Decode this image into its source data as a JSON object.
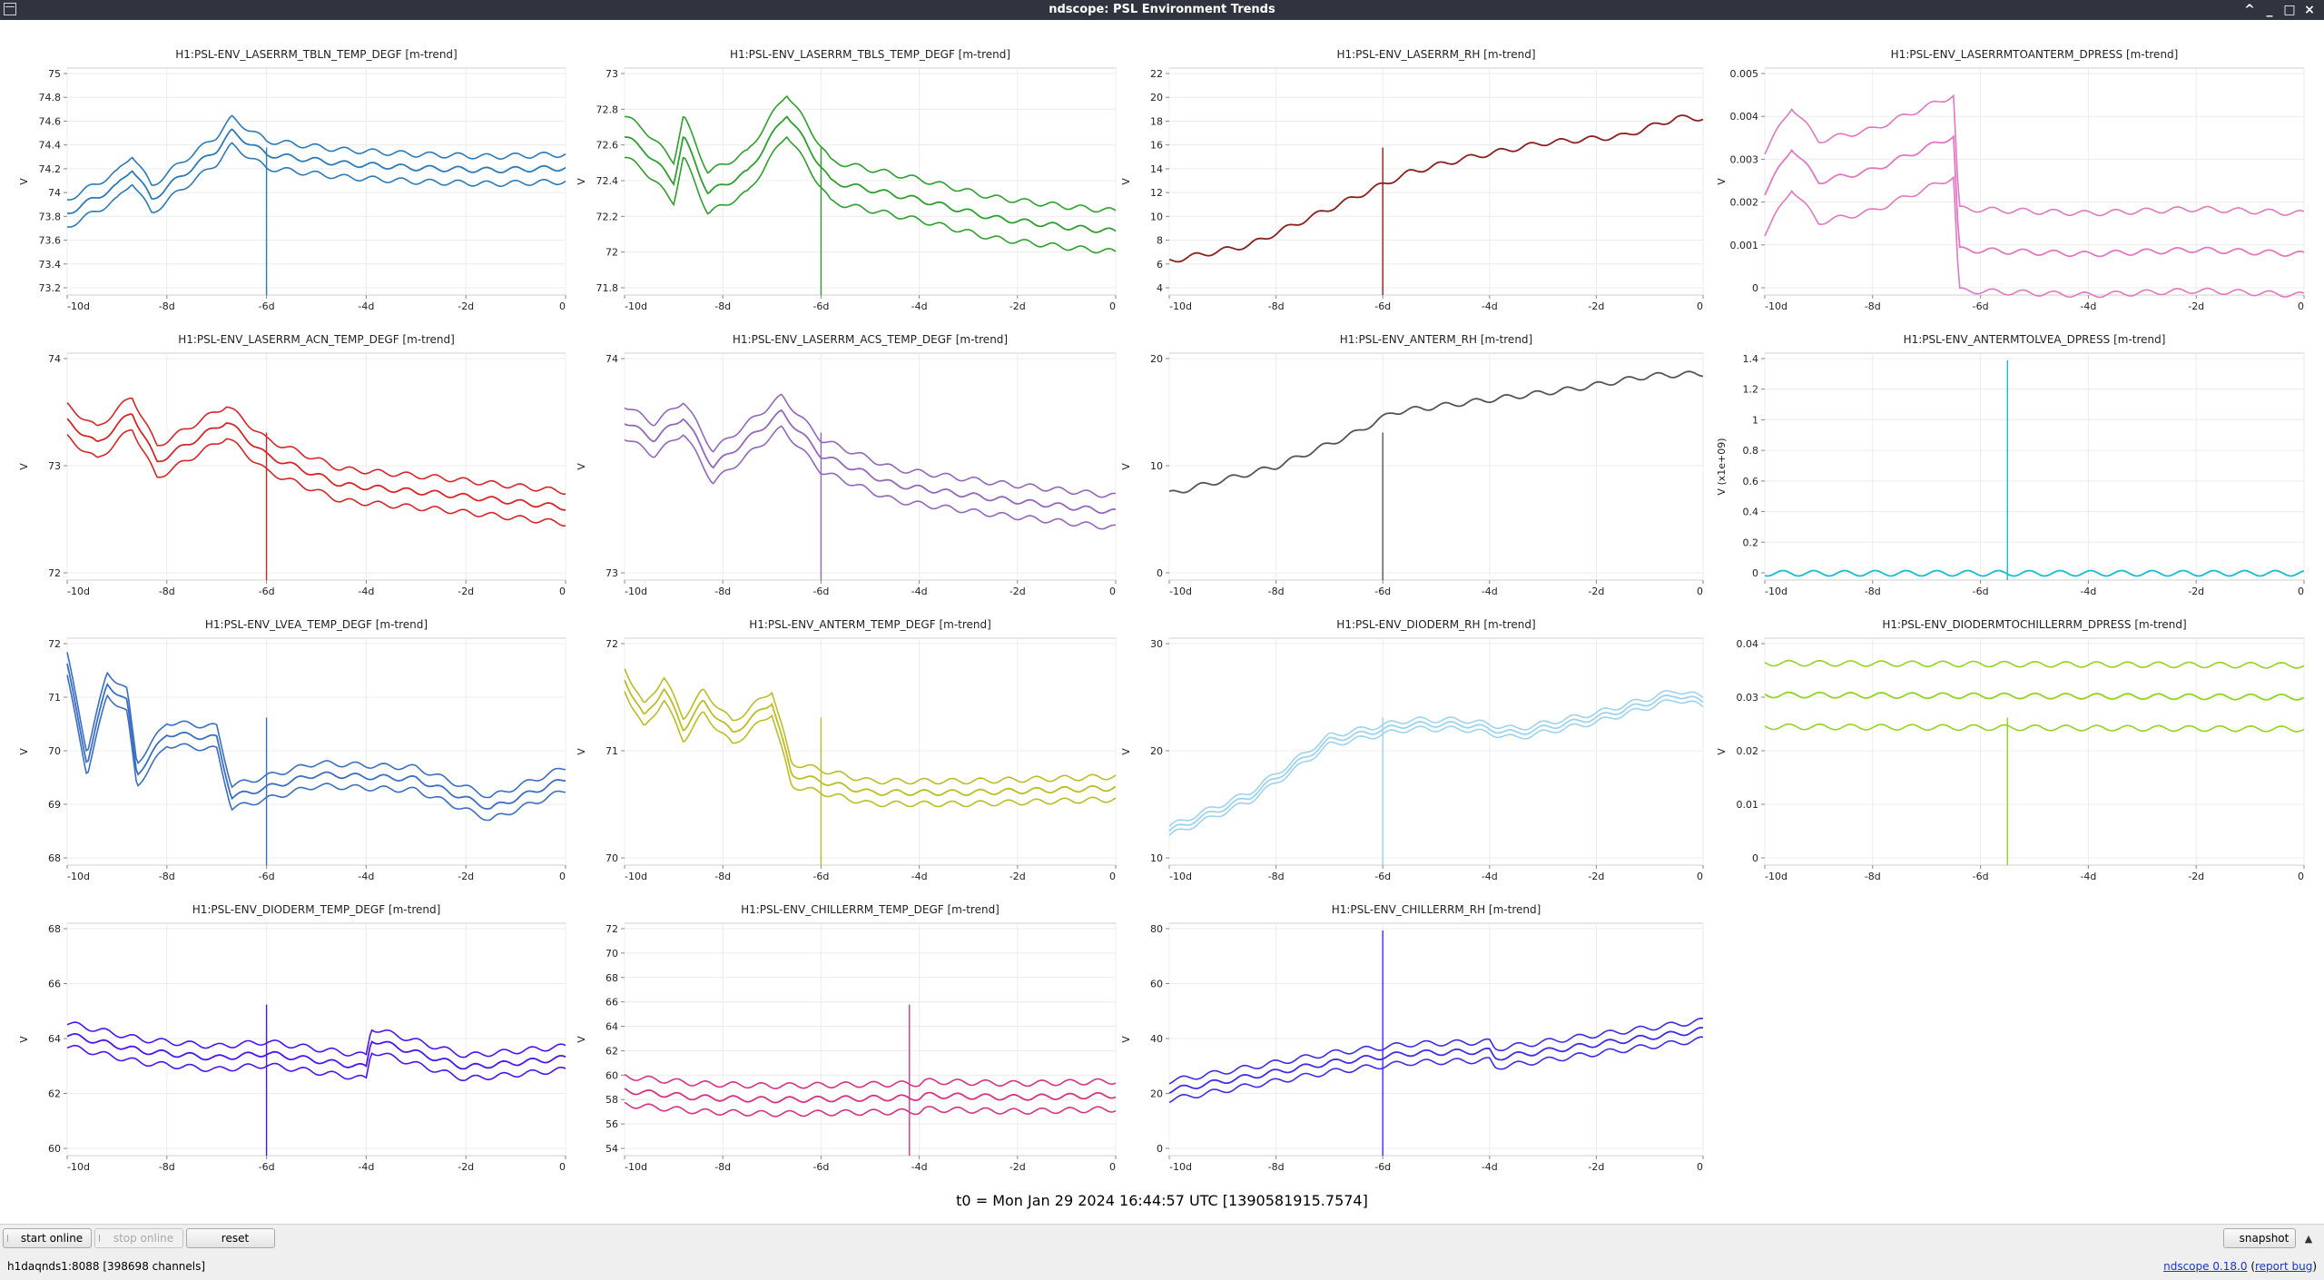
{
  "window": {
    "title": "ndscope: PSL Environment Trends",
    "controls": [
      "^",
      "_",
      "□",
      "×"
    ]
  },
  "plots": [
    {
      "title": "H1:PSL-ENV_LASERRM_TBLN_TEMP_DEGF [m-trend]",
      "ylabel": "V",
      "yticks": [
        "75",
        "74.8",
        "74.6",
        "74.4",
        "74.2",
        "74",
        "73.8",
        "73.6",
        "73.4",
        "73.2"
      ],
      "color": "#2b7bb9"
    },
    {
      "title": "H1:PSL-ENV_LASERRM_TBLS_TEMP_DEGF [m-trend]",
      "ylabel": "V",
      "yticks": [
        "73",
        "72.8",
        "72.6",
        "72.4",
        "72.2",
        "72",
        "71.8"
      ],
      "color": "#2ca02c"
    },
    {
      "title": "H1:PSL-ENV_LASERRM_RH [m-trend]",
      "ylabel": "V",
      "yticks": [
        "22",
        "20",
        "18",
        "16",
        "14",
        "12",
        "10",
        "8",
        "6",
        "4"
      ],
      "color": "#8c1f1f"
    },
    {
      "title": "H1:PSL-ENV_LASERRMTOANTERM_DPRESS [m-trend]",
      "ylabel": "V",
      "yticks": [
        "0.005",
        "0.004",
        "0.003",
        "0.002",
        "0.001",
        "0"
      ],
      "color": "#e377c2"
    },
    {
      "title": "H1:PSL-ENV_LASERRM_ACN_TEMP_DEGF [m-trend]",
      "ylabel": "V",
      "yticks": [
        "74",
        "73",
        "72"
      ],
      "color": "#d62728"
    },
    {
      "title": "H1:PSL-ENV_LASERRM_ACS_TEMP_DEGF [m-trend]",
      "ylabel": "V",
      "yticks": [
        "74",
        "73"
      ],
      "color": "#9467bd"
    },
    {
      "title": "H1:PSL-ENV_ANTERM_RH [m-trend]",
      "ylabel": "V",
      "yticks": [
        "20",
        "10",
        "0"
      ],
      "color": "#555555"
    },
    {
      "title": "H1:PSL-ENV_ANTERMTOLVEA_DPRESS [m-trend]",
      "ylabel": "V (x1e+09)",
      "yticks": [
        "1.4",
        "1.2",
        "1",
        "0.8",
        "0.6",
        "0.4",
        "0.2",
        "0"
      ],
      "color": "#17becf"
    },
    {
      "title": "H1:PSL-ENV_LVEA_TEMP_DEGF [m-trend]",
      "ylabel": "V",
      "yticks": [
        "72",
        "71",
        "70",
        "69",
        "68"
      ],
      "color": "#3a6fc4"
    },
    {
      "title": "H1:PSL-ENV_ANTERM_TEMP_DEGF [m-trend]",
      "ylabel": "V",
      "yticks": [
        "72",
        "71",
        "70"
      ],
      "color": "#bcbd22"
    },
    {
      "title": "H1:PSL-ENV_DIODERM_RH [m-trend]",
      "ylabel": "V",
      "yticks": [
        "30",
        "20",
        "10"
      ],
      "color": "#9dd3ee"
    },
    {
      "title": "H1:PSL-ENV_DIODERMTOCHILLERRM_DPRESS [m-trend]",
      "ylabel": "V",
      "yticks": [
        "0.04",
        "0.03",
        "0.02",
        "0.01",
        "0"
      ],
      "color": "#8fd61c"
    },
    {
      "title": "H1:PSL-ENV_DIODERM_TEMP_DEGF [m-trend]",
      "ylabel": "V",
      "yticks": [
        "68",
        "66",
        "64",
        "62",
        "60"
      ],
      "color": "#4b14f0"
    },
    {
      "title": "H1:PSL-ENV_CHILLERRM_TEMP_DEGF [m-trend]",
      "ylabel": "V",
      "yticks": [
        "72",
        "70",
        "68",
        "66",
        "64",
        "62",
        "60",
        "58",
        "56",
        "54"
      ],
      "color": "#d63384"
    },
    {
      "title": "H1:PSL-ENV_CHILLERRM_RH [m-trend]",
      "ylabel": "V",
      "yticks": [
        "80",
        "60",
        "40",
        "20",
        "0"
      ],
      "color": "#3b2ee6"
    }
  ],
  "xticks": [
    "-10d",
    "-8d",
    "-6d",
    "-4d",
    "-2d",
    "0"
  ],
  "t0_label": "t0 = Mon Jan 29 2024 16:44:57 UTC [1390581915.7574]",
  "buttons": {
    "start_online": "start online",
    "stop_online": "stop online",
    "reset": "reset",
    "snapshot": "snapshot"
  },
  "status": {
    "server": "h1daqnds1:8088  [398698 channels]",
    "version": "ndscope 0.18.0",
    "report_bug": "report bug"
  }
}
